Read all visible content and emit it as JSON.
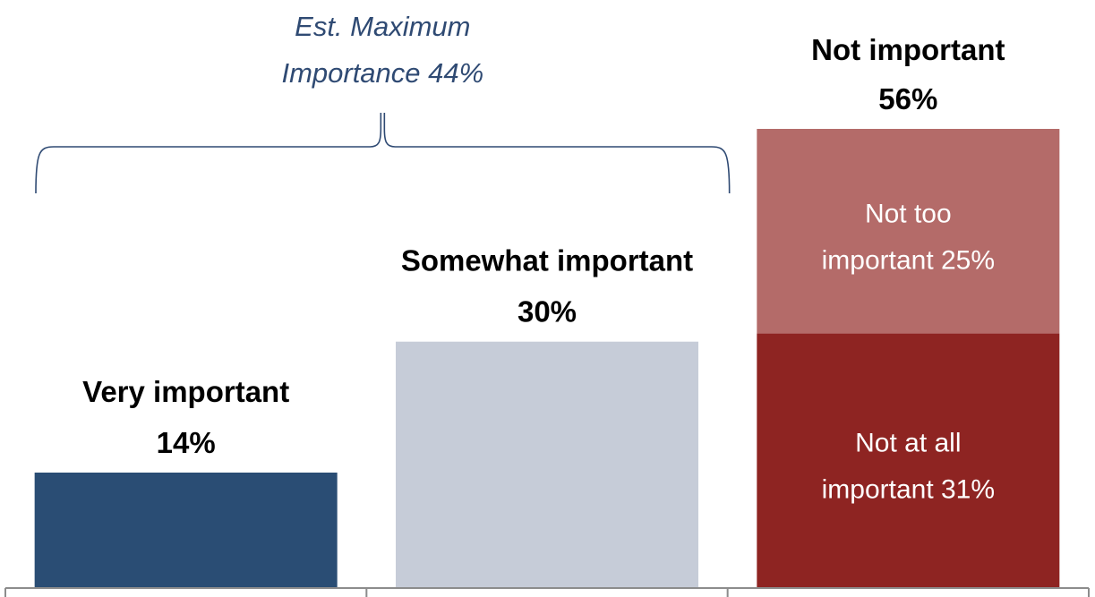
{
  "chart_data": {
    "type": "bar",
    "stacked": true,
    "categories": [
      "Very important",
      "Somewhat important",
      "Not important"
    ],
    "series": [
      {
        "category": "Very important",
        "value": 14,
        "color": "#2a4d74",
        "label_lines": [
          "Very important",
          "14%"
        ],
        "label_position": "above"
      },
      {
        "category": "Somewhat important",
        "value": 30,
        "color": "#c6ccd8",
        "label_lines": [
          "Somewhat important",
          "30%"
        ],
        "label_position": "above"
      },
      {
        "category": "Not important",
        "value": 31,
        "color": "#8e2422",
        "label_lines": [
          "Not at all",
          "important 31%"
        ],
        "label_position": "inside"
      },
      {
        "category": "Not important",
        "value": 25,
        "color": "#b46b69",
        "label_lines": [
          "Not too",
          "important 25%"
        ],
        "label_position": "inside"
      }
    ],
    "totals": [
      {
        "category": "Not important",
        "value": 56,
        "label_lines": [
          "Not important",
          "56%"
        ]
      }
    ],
    "annotation": {
      "label_lines": [
        "Est. Maximum",
        "Importance 44%"
      ],
      "value": 44,
      "spans": [
        "Very important",
        "Somewhat important"
      ],
      "color": "#2f4a73"
    },
    "ylim": [
      0,
      56
    ],
    "grid": false,
    "legend": "none"
  }
}
